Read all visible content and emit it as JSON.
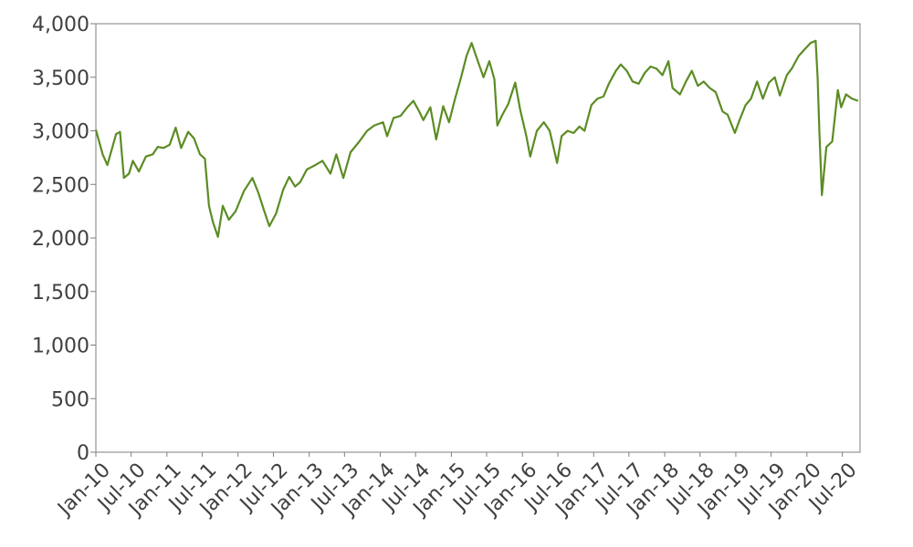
{
  "chart_data": {
    "type": "line",
    "title": "",
    "xlabel": "",
    "ylabel": "",
    "ylim": [
      0,
      4000
    ],
    "xlim": [
      "2010-01-01",
      "2020-09-30"
    ],
    "grid": false,
    "legend": "none",
    "y_ticks": [
      0,
      500,
      1000,
      1500,
      2000,
      2500,
      3000,
      3500,
      4000
    ],
    "y_tick_labels": [
      "0",
      "500",
      "1,000",
      "1,500",
      "2,000",
      "2,500",
      "3,000",
      "3,500",
      "4,000"
    ],
    "x_ticks": [
      "2010-01-01",
      "2010-07-01",
      "2011-01-01",
      "2011-07-01",
      "2012-01-01",
      "2012-07-01",
      "2013-01-01",
      "2013-07-01",
      "2014-01-01",
      "2014-07-01",
      "2015-01-01",
      "2015-07-01",
      "2016-01-01",
      "2016-07-01",
      "2017-01-01",
      "2017-07-01",
      "2018-01-01",
      "2018-07-01",
      "2019-01-01",
      "2019-07-01",
      "2020-01-01",
      "2020-07-01"
    ],
    "x_tick_labels": [
      "Jan-10",
      "Jul-10",
      "Jan-11",
      "Jul-11",
      "Jan-12",
      "Jul-12",
      "Jan-13",
      "Jul-13",
      "Jan-14",
      "Jul-14",
      "Jan-15",
      "Jul-15",
      "Jan-16",
      "Jul-16",
      "Jan-17",
      "Jul-17",
      "Jan-18",
      "Jul-18",
      "Jan-19",
      "Jul-19",
      "Jan-20",
      "Jul-20"
    ],
    "series": [
      {
        "color": "#5b8c23",
        "points": [
          [
            "2010-01-01",
            3010
          ],
          [
            "2010-02-05",
            2780
          ],
          [
            "2010-03-01",
            2680
          ],
          [
            "2010-04-15",
            2970
          ],
          [
            "2010-05-05",
            2990
          ],
          [
            "2010-05-25",
            2560
          ],
          [
            "2010-06-20",
            2600
          ],
          [
            "2010-07-10",
            2720
          ],
          [
            "2010-08-10",
            2620
          ],
          [
            "2010-09-15",
            2760
          ],
          [
            "2010-10-20",
            2780
          ],
          [
            "2010-11-15",
            2850
          ],
          [
            "2010-12-15",
            2840
          ],
          [
            "2011-01-15",
            2870
          ],
          [
            "2011-02-15",
            3030
          ],
          [
            "2011-03-15",
            2840
          ],
          [
            "2011-04-20",
            2990
          ],
          [
            "2011-05-20",
            2930
          ],
          [
            "2011-06-20",
            2780
          ],
          [
            "2011-07-15",
            2740
          ],
          [
            "2011-08-05",
            2300
          ],
          [
            "2011-08-25",
            2150
          ],
          [
            "2011-09-20",
            2010
          ],
          [
            "2011-10-15",
            2300
          ],
          [
            "2011-11-15",
            2170
          ],
          [
            "2011-12-20",
            2250
          ],
          [
            "2012-02-01",
            2440
          ],
          [
            "2012-03-15",
            2560
          ],
          [
            "2012-04-15",
            2420
          ],
          [
            "2012-05-15",
            2250
          ],
          [
            "2012-06-10",
            2110
          ],
          [
            "2012-07-15",
            2230
          ],
          [
            "2012-08-20",
            2450
          ],
          [
            "2012-09-20",
            2570
          ],
          [
            "2012-10-20",
            2480
          ],
          [
            "2012-11-15",
            2520
          ],
          [
            "2012-12-20",
            2640
          ],
          [
            "2013-02-01",
            2680
          ],
          [
            "2013-03-10",
            2720
          ],
          [
            "2013-04-20",
            2600
          ],
          [
            "2013-05-20",
            2780
          ],
          [
            "2013-06-25",
            2560
          ],
          [
            "2013-08-01",
            2800
          ],
          [
            "2013-09-15",
            2900
          ],
          [
            "2013-10-25",
            3000
          ],
          [
            "2013-12-01",
            3050
          ],
          [
            "2014-01-15",
            3080
          ],
          [
            "2014-02-05",
            2950
          ],
          [
            "2014-03-10",
            3120
          ],
          [
            "2014-04-15",
            3140
          ],
          [
            "2014-05-20",
            3220
          ],
          [
            "2014-06-20",
            3280
          ],
          [
            "2014-07-20",
            3180
          ],
          [
            "2014-08-10",
            3100
          ],
          [
            "2014-09-15",
            3220
          ],
          [
            "2014-10-15",
            2920
          ],
          [
            "2014-11-20",
            3230
          ],
          [
            "2014-12-20",
            3080
          ],
          [
            "2015-01-20",
            3300
          ],
          [
            "2015-02-20",
            3500
          ],
          [
            "2015-03-20",
            3700
          ],
          [
            "2015-04-15",
            3820
          ],
          [
            "2015-05-15",
            3660
          ],
          [
            "2015-06-15",
            3500
          ],
          [
            "2015-07-15",
            3650
          ],
          [
            "2015-08-10",
            3480
          ],
          [
            "2015-08-25",
            3050
          ],
          [
            "2015-09-20",
            3150
          ],
          [
            "2015-10-20",
            3250
          ],
          [
            "2015-11-25",
            3450
          ],
          [
            "2015-12-20",
            3200
          ],
          [
            "2016-01-20",
            2960
          ],
          [
            "2016-02-10",
            2760
          ],
          [
            "2016-03-15",
            3000
          ],
          [
            "2016-04-20",
            3080
          ],
          [
            "2016-05-20",
            3000
          ],
          [
            "2016-06-27",
            2700
          ],
          [
            "2016-07-20",
            2950
          ],
          [
            "2016-08-20",
            3000
          ],
          [
            "2016-09-20",
            2980
          ],
          [
            "2016-10-20",
            3040
          ],
          [
            "2016-11-15",
            3000
          ],
          [
            "2016-12-20",
            3240
          ],
          [
            "2017-01-20",
            3300
          ],
          [
            "2017-02-20",
            3320
          ],
          [
            "2017-03-20",
            3440
          ],
          [
            "2017-04-25",
            3560
          ],
          [
            "2017-05-20",
            3620
          ],
          [
            "2017-06-20",
            3560
          ],
          [
            "2017-07-20",
            3460
          ],
          [
            "2017-08-20",
            3440
          ],
          [
            "2017-09-20",
            3540
          ],
          [
            "2017-10-20",
            3600
          ],
          [
            "2017-11-20",
            3580
          ],
          [
            "2017-12-20",
            3520
          ],
          [
            "2018-01-20",
            3650
          ],
          [
            "2018-02-10",
            3400
          ],
          [
            "2018-03-20",
            3340
          ],
          [
            "2018-04-20",
            3460
          ],
          [
            "2018-05-20",
            3560
          ],
          [
            "2018-06-20",
            3420
          ],
          [
            "2018-07-20",
            3460
          ],
          [
            "2018-08-20",
            3400
          ],
          [
            "2018-09-20",
            3360
          ],
          [
            "2018-10-25",
            3180
          ],
          [
            "2018-11-20",
            3150
          ],
          [
            "2018-12-27",
            2980
          ],
          [
            "2019-01-20",
            3100
          ],
          [
            "2019-02-20",
            3240
          ],
          [
            "2019-03-20",
            3300
          ],
          [
            "2019-04-20",
            3460
          ],
          [
            "2019-05-20",
            3300
          ],
          [
            "2019-06-20",
            3450
          ],
          [
            "2019-07-20",
            3500
          ],
          [
            "2019-08-15",
            3330
          ],
          [
            "2019-09-20",
            3520
          ],
          [
            "2019-10-15",
            3580
          ],
          [
            "2019-11-20",
            3700
          ],
          [
            "2019-12-20",
            3760
          ],
          [
            "2020-01-20",
            3820
          ],
          [
            "2020-02-15",
            3840
          ],
          [
            "2020-02-25",
            3500
          ],
          [
            "2020-03-05",
            3000
          ],
          [
            "2020-03-18",
            2400
          ],
          [
            "2020-04-10",
            2850
          ],
          [
            "2020-05-10",
            2900
          ],
          [
            "2020-06-08",
            3380
          ],
          [
            "2020-06-25",
            3220
          ],
          [
            "2020-07-20",
            3340
          ],
          [
            "2020-08-20",
            3300
          ],
          [
            "2020-09-20",
            3280
          ]
        ]
      }
    ]
  }
}
